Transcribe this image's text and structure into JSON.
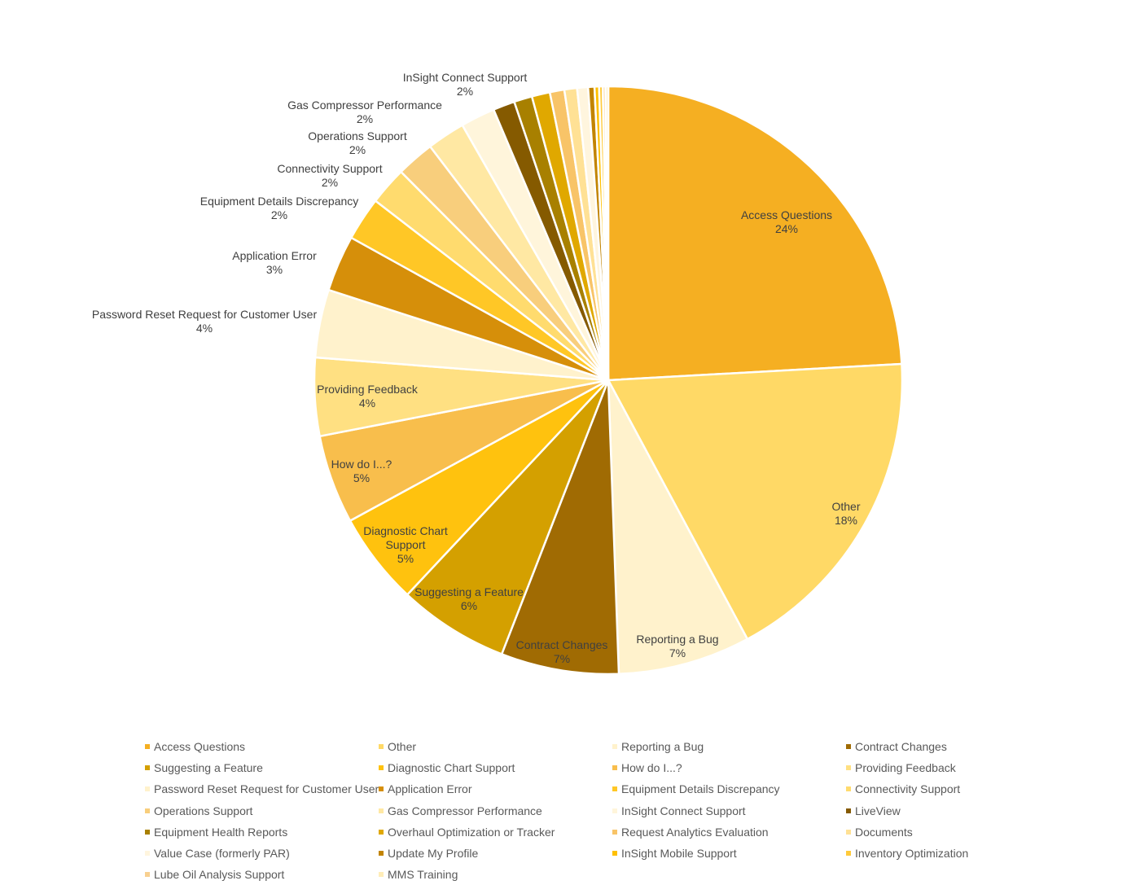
{
  "chart_data": {
    "type": "pie",
    "title": "",
    "legend_position": "bottom",
    "start_angle_deg": 0,
    "direction": "clockwise",
    "slices": [
      {
        "name": "Access Questions",
        "value": 24.2,
        "label": "24%",
        "color": "#F5AF22"
      },
      {
        "name": "Other",
        "value": 18.1,
        "label": "18%",
        "color": "#FFD966"
      },
      {
        "name": "Reporting a Bug",
        "value": 7.3,
        "label": "7%",
        "color": "#FFF2CC"
      },
      {
        "name": "Contract Changes",
        "value": 6.5,
        "label": "7%",
        "color": "#A06B03"
      },
      {
        "name": "Suggesting a Feature",
        "value": 6.1,
        "label": "6%",
        "color": "#D4A000"
      },
      {
        "name": "Diagnostic Chart Support",
        "value": 5.1,
        "label": "5%",
        "color": "#FFC20E"
      },
      {
        "name": "How do I...?",
        "value": 4.9,
        "label": "5%",
        "color": "#F8BE4C"
      },
      {
        "name": "Providing Feedback",
        "value": 4.3,
        "label": "4%",
        "color": "#FFE082"
      },
      {
        "name": "Password Reset Request for Customer User",
        "value": 3.75,
        "label": "4%",
        "color": "#FFF2CC"
      },
      {
        "name": "Application Error",
        "value": 3.1,
        "label": "3%",
        "color": "#D68F0A"
      },
      {
        "name": "Equipment Details Discrepancy",
        "value": 2.4,
        "label": "2%",
        "color": "#FFC726"
      },
      {
        "name": "Connectivity Support",
        "value": 2.1,
        "label": "2%",
        "color": "#FFDB6E"
      },
      {
        "name": "Operations Support",
        "value": 2.1,
        "label": "2%",
        "color": "#F8CE7C"
      },
      {
        "name": "Gas Compressor Performance",
        "value": 2.1,
        "label": "2%",
        "color": "#FFE8A3"
      },
      {
        "name": "InSight Connect Support",
        "value": 1.9,
        "label": "2%",
        "color": "#FFF5DB"
      },
      {
        "name": "LiveView",
        "value": 1.2,
        "color": "#855A00"
      },
      {
        "name": "Equipment Health Reports",
        "value": 1.0,
        "color": "#A88000"
      },
      {
        "name": "Overhaul Optimization or Tracker",
        "value": 1.0,
        "color": "#E0A800"
      },
      {
        "name": "Request Analytics Evaluation",
        "value": 0.8,
        "color": "#F8C468"
      },
      {
        "name": "Documents",
        "value": 0.7,
        "color": "#FFE195"
      },
      {
        "name": "Value Case (formerly PAR)",
        "value": 0.6,
        "color": "#FFF5DE"
      },
      {
        "name": "Update My Profile",
        "value": 0.35,
        "color": "#C28400"
      },
      {
        "name": "InSight Mobile Support",
        "value": 0.25,
        "color": "#FFC000"
      },
      {
        "name": "Inventory Optimization",
        "value": 0.2,
        "color": "#FFCA3A"
      },
      {
        "name": "Lube Oil Analysis Support",
        "value": 0.15,
        "color": "#F8D090"
      },
      {
        "name": "MMS Training",
        "value": 0.15,
        "color": "#FFEDB8"
      }
    ]
  }
}
